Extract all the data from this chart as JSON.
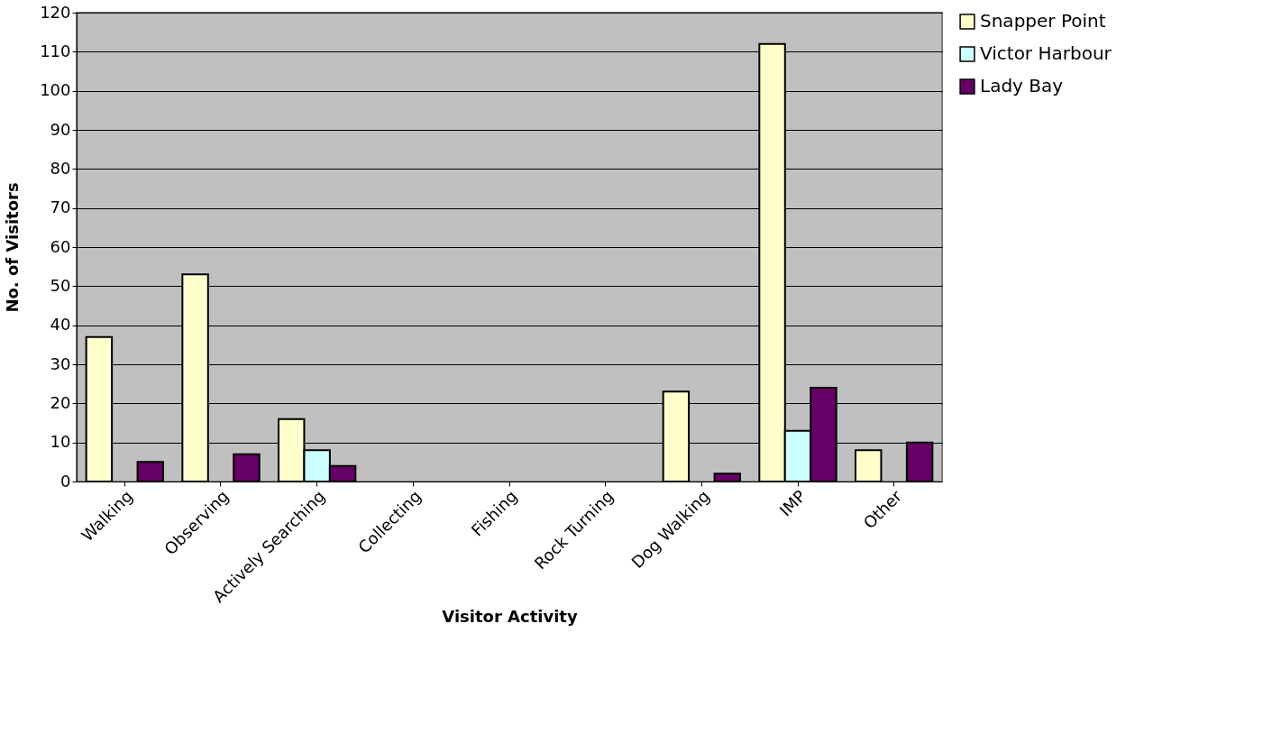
{
  "chart_data": {
    "type": "bar",
    "xlabel": "Visitor Activity",
    "ylabel": "No. of Visitors",
    "categories": [
      "Walking",
      "Observing",
      "Actively Searching",
      "Collecting",
      "Fishing",
      "Rock Turning",
      "Dog Walking",
      "IMP",
      "Other"
    ],
    "series": [
      {
        "name": "Snapper Point",
        "color": "#ffffcc",
        "values": [
          37,
          53,
          16,
          null,
          null,
          null,
          23,
          112,
          8
        ]
      },
      {
        "name": "Victor Harbour",
        "color": "#ccffff",
        "values": [
          null,
          null,
          8,
          null,
          null,
          null,
          null,
          13,
          null
        ]
      },
      {
        "name": "Lady Bay",
        "color": "#660066",
        "values": [
          5,
          7,
          4,
          null,
          null,
          null,
          2,
          24,
          10
        ]
      }
    ],
    "ylim": [
      0,
      120
    ],
    "yticks": [
      0,
      10,
      20,
      30,
      40,
      50,
      60,
      70,
      80,
      90,
      100,
      110,
      120
    ],
    "grid": "y",
    "legend": "right"
  }
}
